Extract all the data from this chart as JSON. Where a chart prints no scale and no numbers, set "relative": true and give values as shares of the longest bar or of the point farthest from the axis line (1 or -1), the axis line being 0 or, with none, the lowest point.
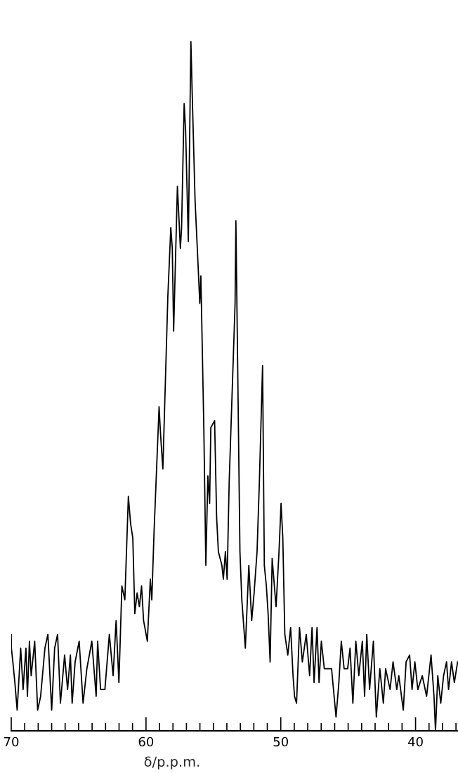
{
  "chart_data": {
    "type": "line",
    "xlabel": "δ/p.p.m.",
    "relative": true,
    "color": "#000000",
    "line_style": "solid",
    "marker": "none",
    "grid": false,
    "legend": false,
    "xlim": [
      70.0,
      36.85
    ],
    "xticks": [
      70,
      {
        "value": 69,
        "label": null
      },
      {
        "value": 68,
        "label": null
      },
      {
        "value": 67,
        "label": null
      },
      {
        "value": 66,
        "label": null
      },
      {
        "value": 65,
        "label": null
      },
      {
        "value": 64,
        "label": null
      },
      {
        "value": 63,
        "label": null
      },
      {
        "value": 62,
        "label": null
      },
      {
        "value": 61,
        "label": null
      },
      60,
      {
        "value": 59,
        "label": null
      },
      {
        "value": 58,
        "label": null
      },
      {
        "value": 57,
        "label": null
      },
      {
        "value": 56,
        "label": null
      },
      {
        "value": 55,
        "label": null
      },
      {
        "value": 54,
        "label": null
      },
      {
        "value": 53,
        "label": null
      },
      {
        "value": 52,
        "label": null
      },
      {
        "value": 51,
        "label": null
      },
      50,
      {
        "value": 49,
        "label": null
      },
      {
        "value": 48,
        "label": null
      },
      {
        "value": 47,
        "label": null
      },
      {
        "value": 46,
        "label": null
      },
      {
        "value": 45,
        "label": null
      },
      {
        "value": 44,
        "label": null
      },
      {
        "value": 43,
        "label": null
      },
      {
        "value": 42,
        "label": null
      },
      {
        "value": 41,
        "label": null
      },
      40,
      {
        "value": 39,
        "label": null
      },
      {
        "value": 38,
        "label": null
      },
      {
        "value": 37,
        "label": null
      }
    ],
    "x": [
      70.0,
      69.99,
      69.88,
      69.73,
      69.56,
      69.3,
      69.12,
      68.91,
      68.8,
      68.65,
      68.52,
      68.26,
      68.04,
      67.82,
      67.5,
      67.28,
      67.0,
      66.78,
      66.56,
      66.35,
      66.04,
      65.82,
      65.61,
      65.48,
      65.26,
      64.96,
      64.67,
      64.39,
      64.02,
      63.7,
      63.59,
      63.37,
      63.05,
      62.72,
      62.44,
      62.22,
      62.01,
      61.79,
      61.57,
      61.31,
      61.14,
      60.98,
      60.83,
      60.66,
      60.49,
      60.33,
      60.18,
      59.9,
      59.68,
      59.57,
      59.4,
      59.03,
      58.92,
      58.75,
      58.38,
      58.16,
      58.05,
      57.95,
      57.67,
      57.45,
      57.36,
      57.17,
      57.06,
      56.86,
      56.67,
      56.58,
      56.36,
      56.1,
      56.01,
      55.93,
      55.71,
      55.56,
      55.41,
      55.28,
      55.19,
      54.91,
      54.76,
      54.63,
      54.37,
      54.26,
      54.11,
      53.98,
      53.83,
      53.39,
      53.33,
      53.03,
      52.89,
      52.63,
      52.37,
      52.16,
      51.98,
      51.76,
      51.59,
      51.35,
      51.22,
      51.07,
      50.94,
      50.79,
      50.64,
      50.35,
      50.13,
      49.98,
      49.85,
      49.7,
      49.48,
      49.27,
      49.09,
      48.98,
      48.83,
      48.61,
      48.4,
      48.11,
      47.86,
      47.68,
      47.53,
      47.31,
      47.16,
      46.99,
      46.77,
      46.55,
      46.23,
      45.9,
      45.69,
      45.51,
      45.3,
      45.04,
      44.86,
      44.65,
      44.43,
      44.21,
      43.95,
      43.78,
      43.62,
      43.41,
      43.13,
      42.91,
      42.65,
      42.39,
      42.22,
      41.89,
      41.67,
      41.39,
      41.24,
      40.91,
      40.7,
      40.44,
      40.26,
      40.05,
      39.83,
      39.5,
      39.18,
      38.85,
      38.63,
      38.52,
      38.35,
      38.13,
      37.92,
      37.7,
      37.55,
      37.33,
      37.12,
      36.88
    ],
    "values": [
      0.14,
      0.12,
      0.1,
      0.07,
      0.03,
      0.12,
      0.06,
      0.12,
      0.05,
      0.13,
      0.08,
      0.13,
      0.03,
      0.05,
      0.12,
      0.14,
      0.03,
      0.12,
      0.14,
      0.04,
      0.11,
      0.06,
      0.11,
      0.04,
      0.1,
      0.13,
      0.04,
      0.09,
      0.13,
      0.05,
      0.13,
      0.06,
      0.06,
      0.14,
      0.08,
      0.16,
      0.07,
      0.21,
      0.19,
      0.34,
      0.3,
      0.28,
      0.17,
      0.2,
      0.18,
      0.21,
      0.16,
      0.13,
      0.22,
      0.19,
      0.29,
      0.47,
      0.43,
      0.38,
      0.63,
      0.73,
      0.7,
      0.58,
      0.79,
      0.7,
      0.73,
      0.91,
      0.87,
      0.71,
      1.0,
      0.93,
      0.77,
      0.66,
      0.62,
      0.66,
      0.44,
      0.24,
      0.37,
      0.33,
      0.44,
      0.45,
      0.31,
      0.26,
      0.24,
      0.22,
      0.26,
      0.22,
      0.36,
      0.62,
      0.74,
      0.26,
      0.19,
      0.12,
      0.24,
      0.16,
      0.2,
      0.26,
      0.36,
      0.53,
      0.24,
      0.21,
      0.17,
      0.1,
      0.25,
      0.18,
      0.26,
      0.33,
      0.28,
      0.14,
      0.11,
      0.15,
      0.08,
      0.05,
      0.04,
      0.15,
      0.1,
      0.14,
      0.08,
      0.15,
      0.07,
      0.15,
      0.07,
      0.13,
      0.09,
      0.09,
      0.09,
      0.02,
      0.07,
      0.13,
      0.09,
      0.09,
      0.12,
      0.04,
      0.13,
      0.08,
      0.13,
      0.05,
      0.14,
      0.06,
      0.13,
      0.02,
      0.09,
      0.04,
      0.09,
      0.06,
      0.1,
      0.06,
      0.08,
      0.03,
      0.1,
      0.11,
      0.06,
      0.1,
      0.06,
      0.08,
      0.05,
      0.11,
      0.05,
      0.0,
      0.08,
      0.04,
      0.08,
      0.1,
      0.06,
      0.1,
      0.07,
      0.1
    ]
  }
}
